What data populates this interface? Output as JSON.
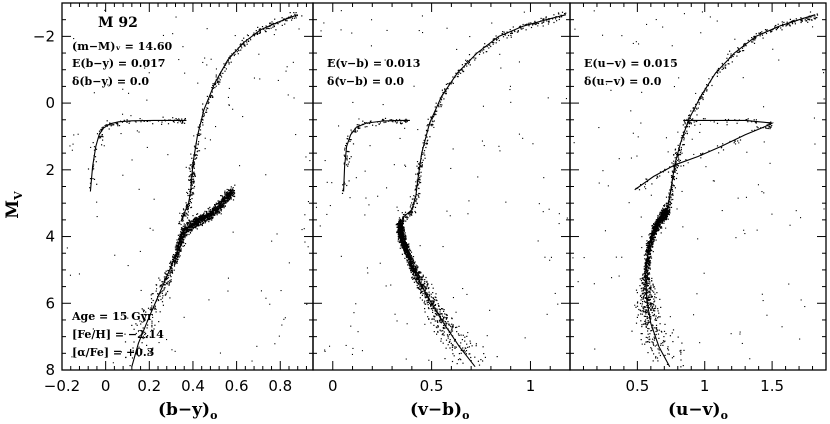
{
  "chart_data": {
    "type": "scatter",
    "ylabel": "M",
    "ylabel_sub": "V",
    "ylim": [
      8,
      -3
    ],
    "yticks": [
      "−2",
      "0",
      "2",
      "4",
      "6",
      "8"
    ],
    "ytick_values": [
      -2,
      0,
      2,
      4,
      6,
      8
    ],
    "panels": [
      {
        "xlabel": "(b−y)",
        "xlabel_sub": "o",
        "xlim": [
          -0.2,
          0.95
        ],
        "xticks": [
          "−0.2",
          "0",
          "0.2",
          "0.4",
          "0.6",
          "0.8"
        ],
        "xtick_values": [
          -0.2,
          0,
          0.2,
          0.4,
          0.6,
          0.8
        ],
        "annotations_top": [
          "M 92",
          "(m−M)ᵥ = 14.60",
          "E(b−y) = 0.017",
          "δ(b−y) = 0.0"
        ],
        "annotations_bottom": [
          "Age = 15 Gyr",
          "[Fe/H] = −2.14",
          "[α/Fe] = +0.3"
        ],
        "isochrone": {
          "x": [
            0.12,
            0.15,
            0.2,
            0.26,
            0.3,
            0.33,
            0.34,
            0.36,
            0.4,
            0.43,
            0.48,
            0.53,
            0.58
          ],
          "y": [
            7.9,
            7.2,
            6.4,
            5.5,
            4.9,
            4.4,
            4.1,
            3.8,
            3.6,
            3.5,
            3.3,
            3.0,
            2.6
          ]
        },
        "msto_giant": {
          "x": [
            0.345,
            0.36,
            0.38,
            0.39,
            0.395,
            0.4,
            0.42,
            0.45,
            0.5,
            0.56,
            0.63,
            0.71,
            0.8,
            0.88
          ],
          "y": [
            3.55,
            3.3,
            3.0,
            2.6,
            2.2,
            1.8,
            1.0,
            0.2,
            -0.6,
            -1.3,
            -1.8,
            -2.2,
            -2.45,
            -2.65
          ]
        },
        "hb": {
          "x": [
            -0.07,
            -0.06,
            -0.045,
            -0.03,
            -0.01,
            0.02,
            0.06,
            0.12,
            0.22,
            0.33,
            0.37
          ],
          "y": [
            2.65,
            1.9,
            1.3,
            0.95,
            0.75,
            0.62,
            0.56,
            0.53,
            0.52,
            0.52,
            0.52
          ]
        }
      },
      {
        "xlabel": "(v−b)",
        "xlabel_sub": "o",
        "xlim": [
          -0.1,
          1.2
        ],
        "xticks": [
          "0",
          "0.5",
          "1"
        ],
        "xtick_values": [
          0,
          0.5,
          1
        ],
        "annotations_top": [
          "E(v−b) = 0.013",
          "δ(v−b) = 0.0"
        ],
        "isochrone": {
          "x": [
            0.72,
            0.64,
            0.55,
            0.47,
            0.41,
            0.37,
            0.345,
            0.34
          ],
          "y": [
            7.9,
            7.3,
            6.5,
            5.7,
            5.0,
            4.4,
            4.0,
            3.6
          ]
        },
        "msto_giant": {
          "x": [
            0.34,
            0.36,
            0.4,
            0.42,
            0.43,
            0.45,
            0.49,
            0.55,
            0.63,
            0.73,
            0.84,
            0.96,
            1.08,
            1.18
          ],
          "y": [
            3.6,
            3.4,
            3.2,
            2.8,
            2.3,
            1.5,
            0.6,
            -0.2,
            -0.9,
            -1.5,
            -2.0,
            -2.3,
            -2.5,
            -2.65
          ]
        },
        "hb": {
          "x": [
            0.055,
            0.06,
            0.07,
            0.09,
            0.12,
            0.17,
            0.25,
            0.33,
            0.39
          ],
          "y": [
            2.65,
            1.9,
            1.3,
            0.95,
            0.72,
            0.6,
            0.54,
            0.52,
            0.52
          ]
        }
      },
      {
        "xlabel": "(u−v)",
        "xlabel_sub": "o",
        "xlim": [
          0.0,
          1.9
        ],
        "xticks": [
          "0.5",
          "1",
          "1.5"
        ],
        "xtick_values": [
          0.5,
          1,
          1.5
        ],
        "annotations_top": [
          "E(u−v) = 0.015",
          "δ(u−v) = 0.0"
        ],
        "isochrone": {
          "x": [
            0.74,
            0.66,
            0.6,
            0.57,
            0.56,
            0.58,
            0.62,
            0.68,
            0.72
          ],
          "y": [
            7.9,
            7.3,
            6.6,
            5.9,
            5.2,
            4.4,
            3.8,
            3.4,
            3.2
          ]
        },
        "msto_giant": {
          "x": [
            0.72,
            0.74,
            0.76,
            0.78,
            0.82,
            0.88,
            0.97,
            1.08,
            1.22,
            1.38,
            1.55,
            1.7,
            1.82
          ],
          "y": [
            3.2,
            2.8,
            2.3,
            1.8,
            1.2,
            0.5,
            -0.2,
            -0.9,
            -1.5,
            -2.0,
            -2.3,
            -2.5,
            -2.65
          ]
        },
        "hb": {
          "x": [
            0.48,
            0.62,
            0.78,
            0.95,
            1.12,
            1.3,
            1.45,
            1.5,
            1.3,
            1.1,
            0.9,
            0.84
          ],
          "y": [
            2.6,
            2.2,
            1.85,
            1.6,
            1.3,
            0.95,
            0.7,
            0.6,
            0.52,
            0.52,
            0.52,
            0.52
          ]
        }
      }
    ]
  }
}
